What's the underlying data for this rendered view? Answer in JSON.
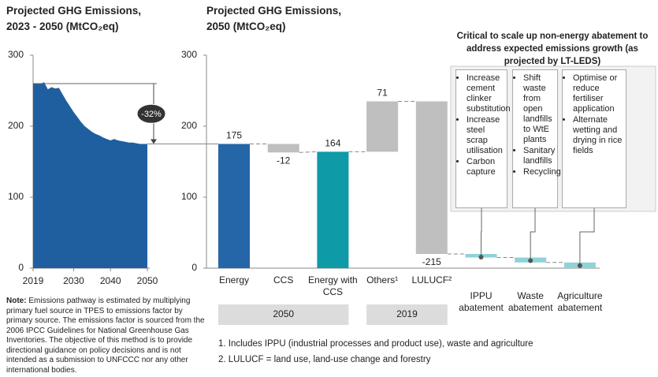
{
  "chart_data": [
    {
      "type": "area",
      "title": [
        "Projected GHG Emissions,",
        "2023 - 2050 (MtCO₂eq)"
      ],
      "x": [
        2019,
        2020,
        2021,
        2022,
        2023,
        2024,
        2025,
        2026,
        2027,
        2028,
        2029,
        2030,
        2031,
        2032,
        2033,
        2034,
        2035,
        2036,
        2037,
        2038,
        2039,
        2040,
        2041,
        2042,
        2043,
        2044,
        2045,
        2046,
        2047,
        2048,
        2049,
        2050
      ],
      "values": [
        260,
        260,
        260,
        262,
        252,
        255,
        253,
        254,
        245,
        236,
        228,
        220,
        213,
        206,
        200,
        196,
        192,
        189,
        187,
        184,
        182,
        180,
        182,
        180,
        179,
        178,
        177,
        177,
        176,
        175,
        175,
        175
      ],
      "color": "#1f5fa0",
      "xlim": [
        2019,
        2050
      ],
      "xticks": [
        2019,
        2030,
        2040,
        2050
      ],
      "ylim": [
        0,
        300
      ],
      "yticks": [
        0,
        100,
        200,
        300
      ],
      "annotation": "-32%"
    },
    {
      "type": "waterfall",
      "title": [
        "Projected GHG Emissions,",
        "2050 (MtCO₂eq)"
      ],
      "categories": [
        "Energy",
        "CCS",
        "Energy with CCS",
        "Others¹",
        "LULUCF²",
        "IPPU abatement",
        "Waste abatement",
        "Agriculture abatement"
      ],
      "values": [
        175,
        -12,
        164,
        71,
        -215,
        -5,
        -7,
        -7
      ],
      "value_labels": [
        "175",
        "-12",
        "164",
        "71",
        "-215",
        null,
        null,
        null
      ],
      "kinds": [
        "total",
        "delta",
        "total",
        "delta",
        "delta",
        "abatement",
        "abatement",
        "abatement"
      ],
      "colors": [
        "#2566a8",
        "#bfbfbf",
        "#0e9aa7",
        "#bfbfbf",
        "#bfbfbf",
        "#8fd3d9",
        "#8fd3d9",
        "#8fd3d9"
      ],
      "ylim": [
        0,
        300
      ],
      "yticks": [
        0,
        100,
        200,
        300
      ],
      "groups": [
        {
          "label": "2050",
          "span": [
            0,
            2
          ]
        },
        {
          "label": "2019",
          "span": [
            3,
            4
          ]
        }
      ],
      "callout": {
        "title": "Critical to scale up non-energy abatement to address expected emissions growth (as projected by LT-LEDS)",
        "boxes": [
          [
            "Increase cement clinker substitution",
            "Increase steel scrap utilisation",
            "Carbon capture"
          ],
          [
            "Shift waste from open landfills to WtE plants",
            "Sanitary landfills",
            "Recycling"
          ],
          [
            "Optimise or reduce fertiliser application",
            "Alternate wetting and drying in rice fields"
          ]
        ]
      }
    }
  ],
  "note": {
    "label": "Note:",
    "text": "Emissions pathway is estimated by multiplying primary fuel source in TPES to emissions factor by primary source. The emissions factor is sourced from the 2006 IPCC Guidelines for National Greenhouse Gas Inventories. The objective of this method is to provide directional guidance on policy decisions and is not intended as a submission to UNFCCC nor any other international bodies."
  },
  "footnotes": [
    "1. Includes IPPU (industrial processes and product use), waste and agriculture",
    "2. LULUCF = land use, land-use change and forestry"
  ]
}
